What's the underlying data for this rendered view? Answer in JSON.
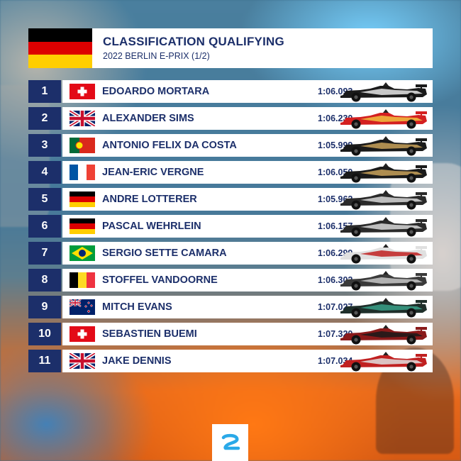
{
  "header": {
    "title": "CLASSIFICATION QUALIFYING",
    "subtitle": "2022 BERLIN E-PRIX (1/2)",
    "flag_icon": "germany-flag-icon"
  },
  "colors": {
    "navy": "#1c2f6a",
    "white": "#ffffff"
  },
  "drivers": [
    {
      "pos": "1",
      "name": "EDOARDO MORTARA",
      "time": "1:06.093",
      "flag": "switzerland",
      "car_primary": "#1a1a1a",
      "car_accent": "#e8e8e8"
    },
    {
      "pos": "2",
      "name": "ALEXANDER SIMS",
      "time": "1:06.230",
      "flag": "uk",
      "car_primary": "#d42020",
      "car_accent": "#f0c040"
    },
    {
      "pos": "3",
      "name": "ANTONIO FELIX DA COSTA",
      "time": "1:05.999",
      "flag": "portugal",
      "car_primary": "#1a1a1a",
      "car_accent": "#c9a25a"
    },
    {
      "pos": "4",
      "name": "JEAN-ERIC VERGNE",
      "time": "1:06.050",
      "flag": "france",
      "car_primary": "#1a1a1a",
      "car_accent": "#c9a25a"
    },
    {
      "pos": "5",
      "name": "ANDRE LOTTERER",
      "time": "1:05.962",
      "flag": "germany",
      "car_primary": "#2a2a2a",
      "car_accent": "#d8d8d8"
    },
    {
      "pos": "6",
      "name": "PASCAL WEHRLEIN",
      "time": "1:06.157",
      "flag": "germany",
      "car_primary": "#2a2a2a",
      "car_accent": "#d8d8d8"
    },
    {
      "pos": "7",
      "name": "SERGIO SETTE CAMARA",
      "time": "1:06.299",
      "flag": "brazil",
      "car_primary": "#e0e0e0",
      "car_accent": "#c02020"
    },
    {
      "pos": "8",
      "name": "STOFFEL VANDOORNE",
      "time": "1:06.302",
      "flag": "belgium",
      "car_primary": "#3a3a3a",
      "car_accent": "#c8c8c8"
    },
    {
      "pos": "9",
      "name": "MITCH EVANS",
      "time": "1:07.027",
      "flag": "new-zealand",
      "car_primary": "#1f2f2a",
      "car_accent": "#3aa088"
    },
    {
      "pos": "10",
      "name": "SEBASTIEN BUEMI",
      "time": "1:07.320",
      "flag": "switzerland",
      "car_primary": "#8a1a1a",
      "car_accent": "#1a1a1a"
    },
    {
      "pos": "11",
      "name": "JAKE DENNIS",
      "time": "1:07.034",
      "flag": "uk",
      "car_primary": "#c02020",
      "car_accent": "#e0e0e0"
    }
  ],
  "footer": {
    "logo_icon": "formula-e-logo-icon"
  }
}
